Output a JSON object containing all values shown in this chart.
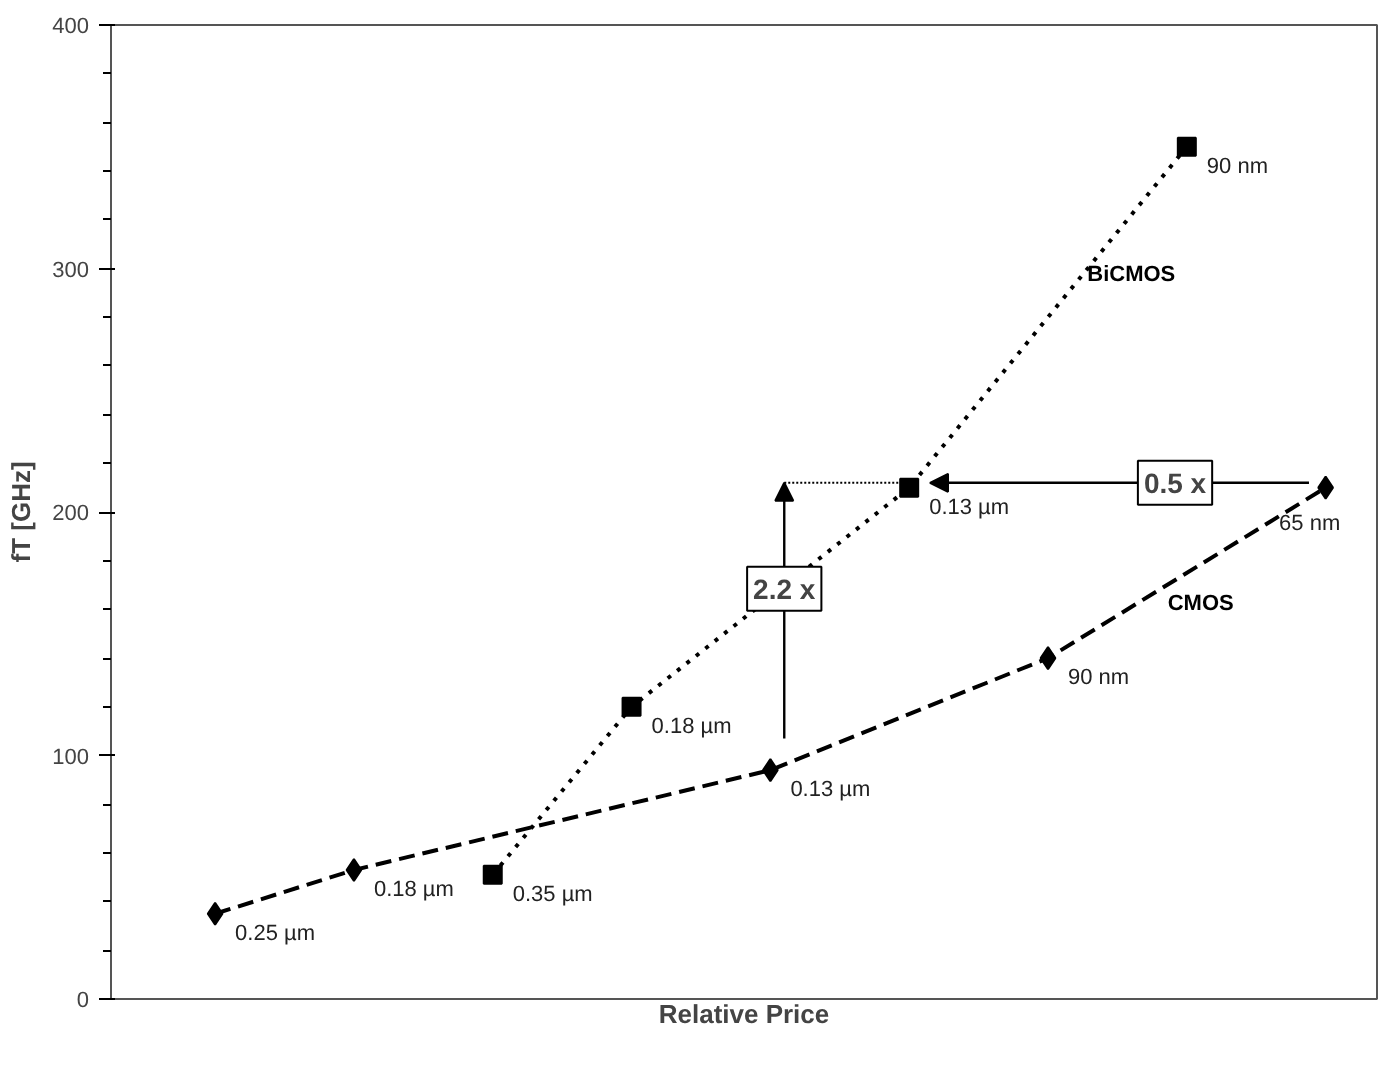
{
  "chart_data": {
    "type": "line",
    "xlabel": "Relative Price",
    "ylabel": "fT [GHz]",
    "categories": [
      null,
      null,
      null,
      null,
      null,
      null,
      null,
      null,
      null
    ],
    "ylim": [
      0,
      400
    ],
    "yticks": [
      0,
      100,
      200,
      300,
      400
    ],
    "tick_labels": "y",
    "series": [
      {
        "name": "CMOS",
        "color": "#000000",
        "marker": "diamond",
        "line_style": "dashed",
        "values": [
          35,
          53,
          null,
          null,
          94,
          null,
          140,
          null,
          210
        ]
      },
      {
        "name": "BiCMOS",
        "color": "#000000",
        "marker": "square",
        "line_style": "dotted",
        "values": [
          null,
          null,
          51,
          120,
          null,
          210,
          null,
          350,
          null
        ]
      }
    ],
    "annotations": [
      "0.25 µm",
      "0.18 µm",
      "0.13 µm",
      "90 nm",
      "65 nm",
      "0.35 µm",
      "0.18 µm",
      "0.13 µm",
      "90 nm",
      "2.2 x",
      "0.5 x"
    ]
  }
}
